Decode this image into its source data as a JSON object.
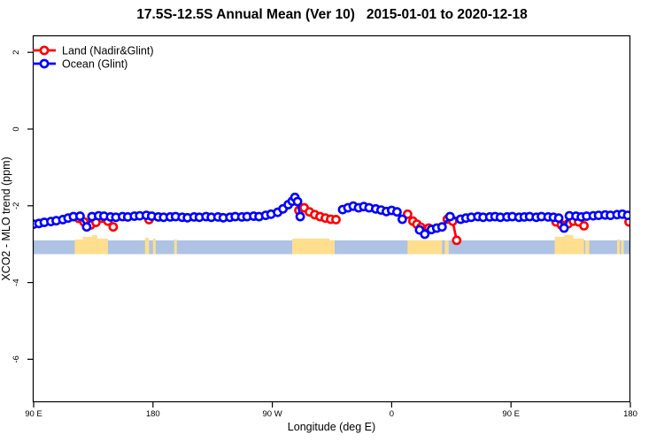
{
  "chart_data": {
    "type": "line",
    "title": "17.5S-12.5S Annual Mean (Ver 10)   2015-01-01 to 2020-12-18",
    "xlabel": "Longitude (deg E)",
    "ylabel": "XCO2 - MLO trend (ppm)",
    "xlim": [
      90,
      540
    ],
    "ylim": [
      -7.1,
      2.4
    ],
    "grid": false,
    "legend_position": "top-left",
    "x_ticks": {
      "pos": [
        90,
        180,
        270,
        360,
        450,
        540
      ],
      "labels": [
        "90 E",
        "180",
        "90 W",
        "0",
        "90 E",
        "180"
      ]
    },
    "y_ticks": {
      "pos": [
        2,
        0,
        -2,
        -4,
        -6
      ],
      "labels": [
        "2",
        "0",
        "-2",
        "-4",
        "-6"
      ]
    },
    "series": [
      {
        "name": "Land (Nadir&Glint)",
        "color": "#FF0000",
        "marker": "open-circle",
        "points": [
          [
            124,
            -2.33
          ],
          [
            128,
            -2.42
          ],
          [
            133,
            -2.5
          ],
          [
            137,
            -2.43
          ],
          [
            146,
            -2.4
          ],
          [
            150,
            -2.55
          ],
          null,
          [
            177,
            -2.36
          ],
          null,
          [
            290,
            -2.12
          ],
          [
            294,
            -2.05
          ],
          [
            298,
            -2.16
          ],
          [
            302,
            -2.23
          ],
          [
            306,
            -2.28
          ],
          [
            310,
            -2.32
          ],
          [
            314,
            -2.35
          ],
          [
            318,
            -2.36
          ],
          null,
          [
            372,
            -2.22
          ],
          [
            376,
            -2.4
          ],
          [
            379,
            -2.48
          ],
          [
            382,
            -2.56
          ],
          null,
          [
            388,
            -2.58
          ],
          null,
          [
            402,
            -2.35
          ],
          [
            406,
            -2.4
          ],
          [
            409,
            -2.9
          ],
          null,
          [
            484,
            -2.42
          ],
          [
            488,
            -2.5
          ],
          null,
          [
            493,
            -2.47
          ],
          [
            497,
            -2.4
          ],
          null,
          [
            501,
            -2.42
          ],
          [
            505,
            -2.52
          ],
          null,
          [
            539,
            -2.42
          ]
        ]
      },
      {
        "name": "Ocean (Glint)",
        "color": "#0000FF",
        "marker": "open-circle",
        "points": [
          [
            90,
            -2.48
          ],
          [
            94,
            -2.46
          ],
          [
            98,
            -2.43
          ],
          [
            103,
            -2.41
          ],
          [
            107,
            -2.39
          ],
          [
            112,
            -2.36
          ],
          [
            116,
            -2.32
          ],
          [
            120,
            -2.28
          ],
          [
            125,
            -2.27
          ],
          [
            130,
            -2.55
          ],
          [
            134,
            -2.28
          ],
          [
            139,
            -2.26
          ],
          [
            143,
            -2.27
          ],
          [
            148,
            -2.29
          ],
          [
            152,
            -2.3
          ],
          [
            157,
            -2.28
          ],
          [
            161,
            -2.29
          ],
          [
            166,
            -2.27
          ],
          [
            170,
            -2.26
          ],
          [
            175,
            -2.25
          ],
          [
            179,
            -2.27
          ],
          [
            184,
            -2.29
          ],
          [
            188,
            -2.3
          ],
          [
            193,
            -2.29
          ],
          [
            197,
            -2.28
          ],
          [
            202,
            -2.3
          ],
          [
            206,
            -2.31
          ],
          [
            211,
            -2.29
          ],
          [
            215,
            -2.3
          ],
          [
            220,
            -2.28
          ],
          [
            224,
            -2.3
          ],
          [
            229,
            -2.29
          ],
          [
            233,
            -2.31
          ],
          [
            238,
            -2.3
          ],
          [
            242,
            -2.28
          ],
          [
            247,
            -2.29
          ],
          [
            251,
            -2.28
          ],
          [
            256,
            -2.27
          ],
          [
            260,
            -2.28
          ],
          [
            265,
            -2.25
          ],
          [
            269,
            -2.22
          ],
          [
            274,
            -2.17
          ],
          [
            278,
            -2.08
          ],
          [
            282,
            -1.97
          ],
          [
            285,
            -1.88
          ],
          [
            287,
            -1.78
          ],
          [
            289,
            -1.89
          ],
          [
            291,
            -2.28
          ],
          null,
          [
            323,
            -2.1
          ],
          [
            327,
            -2.05
          ],
          [
            331,
            -2.01
          ],
          [
            335,
            -2.05
          ],
          [
            339,
            -2.02
          ],
          [
            343,
            -2.05
          ],
          [
            348,
            -2.08
          ],
          [
            352,
            -2.11
          ],
          [
            356,
            -2.15
          ],
          [
            360,
            -2.12
          ],
          [
            364,
            -2.16
          ],
          [
            368,
            -2.35
          ],
          null,
          [
            381,
            -2.63
          ],
          [
            385,
            -2.74
          ],
          [
            390,
            -2.62
          ],
          [
            394,
            -2.58
          ],
          [
            398,
            -2.55
          ],
          [
            404,
            -2.28
          ],
          [
            412,
            -2.35
          ],
          [
            416,
            -2.32
          ],
          [
            420,
            -2.3
          ],
          [
            425,
            -2.28
          ],
          [
            429,
            -2.3
          ],
          [
            434,
            -2.29
          ],
          [
            438,
            -2.28
          ],
          [
            442,
            -2.3
          ],
          [
            447,
            -2.29
          ],
          [
            451,
            -2.28
          ],
          [
            456,
            -2.3
          ],
          [
            460,
            -2.29
          ],
          [
            464,
            -2.28
          ],
          [
            469,
            -2.3
          ],
          [
            473,
            -2.28
          ],
          [
            478,
            -2.29
          ],
          [
            482,
            -2.3
          ],
          [
            486,
            -2.32
          ],
          [
            490,
            -2.58
          ],
          [
            494,
            -2.26
          ],
          [
            499,
            -2.27
          ],
          [
            503,
            -2.29
          ],
          [
            507,
            -2.27
          ],
          [
            512,
            -2.26
          ],
          [
            516,
            -2.25
          ],
          [
            521,
            -2.24
          ],
          [
            525,
            -2.25
          ],
          [
            530,
            -2.23
          ],
          [
            534,
            -2.22
          ],
          [
            538,
            -2.25
          ]
        ]
      }
    ],
    "band": {
      "description": "surface-type strip: ocean in light blue, land topography in tan",
      "top_value": -2.9,
      "bottom_value": -3.26,
      "ocean_color": "#AEC3E4",
      "land_color": "#FFDF8E",
      "land_segments": [
        {
          "s": 121,
          "e": 127,
          "r": 1
        },
        {
          "s": 127,
          "e": 134,
          "r": 4
        },
        {
          "s": 134,
          "e": 138,
          "r": 6
        },
        {
          "s": 138,
          "e": 146,
          "r": 2
        },
        {
          "s": 174,
          "e": 177,
          "r": 3
        },
        {
          "s": 180,
          "e": 182,
          "r": 2
        },
        {
          "s": 196,
          "e": 198,
          "r": 1
        },
        {
          "s": 285,
          "e": 313,
          "r": 2
        },
        {
          "s": 313,
          "e": 317,
          "r": 0
        },
        {
          "s": 372,
          "e": 398,
          "r": 0
        },
        {
          "s": 400,
          "e": 403,
          "r": 0
        },
        {
          "s": 483,
          "e": 490,
          "r": 4
        },
        {
          "s": 490,
          "e": 497,
          "r": 6
        },
        {
          "s": 497,
          "e": 505,
          "r": 2
        },
        {
          "s": 506,
          "e": 509,
          "r": 0
        },
        {
          "s": 530,
          "e": 532,
          "r": 1
        },
        {
          "s": 533,
          "e": 535,
          "r": 0
        }
      ]
    }
  },
  "legend": {
    "items": [
      {
        "label": "Land (Nadir&Glint)",
        "color": "#FF0000"
      },
      {
        "label": "Ocean (Glint)",
        "color": "#0000FF"
      }
    ]
  },
  "colors": {
    "frame": "#000000",
    "background": "#FFFFFF"
  }
}
